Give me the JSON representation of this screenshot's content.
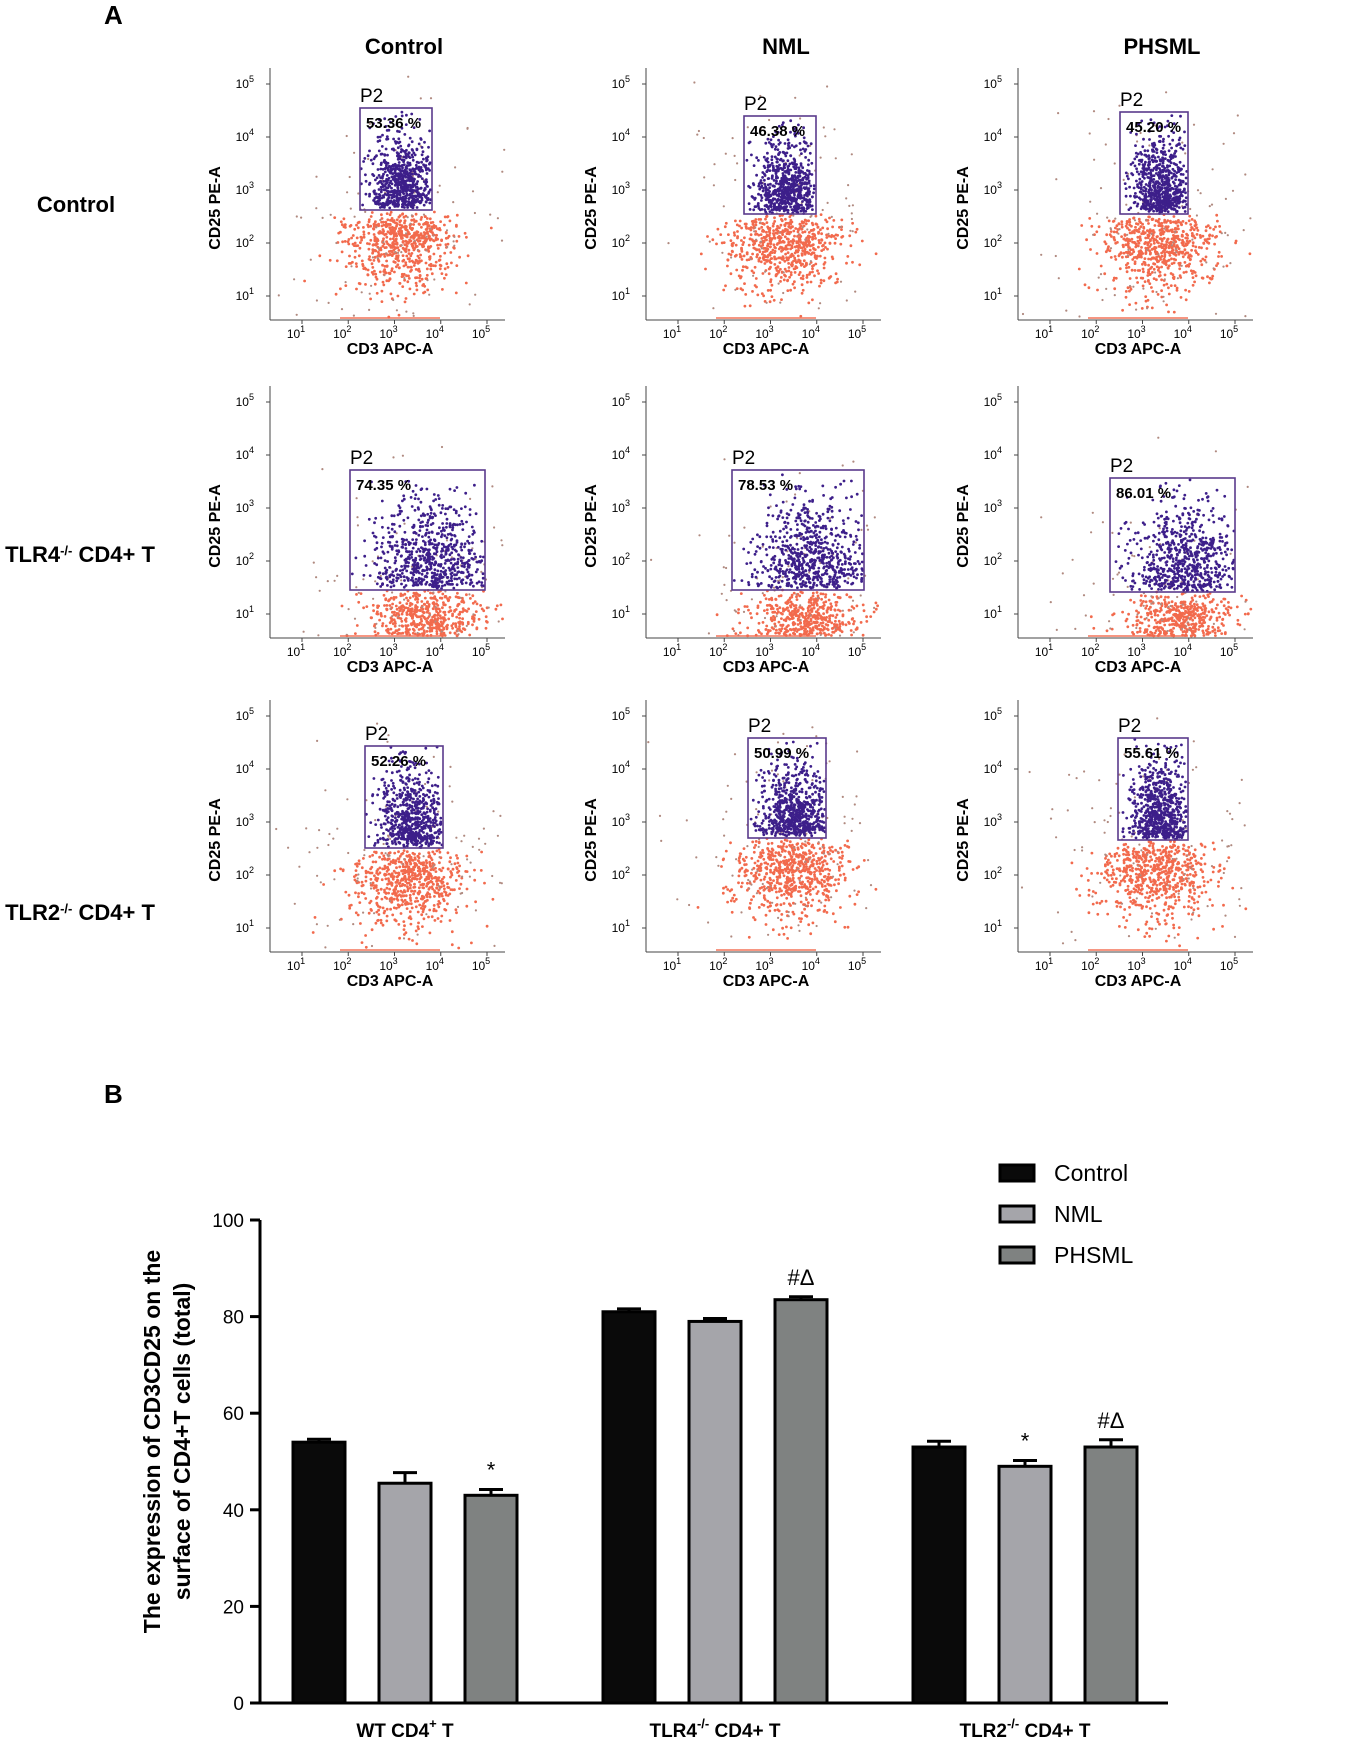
{
  "panel_a": {
    "letter": "A",
    "col_titles": [
      "Control",
      "NML",
      "PHSML"
    ],
    "row_labels": [
      {
        "name": "Control",
        "sup": "",
        "suffix": ""
      },
      {
        "name": "TLR4",
        "sup": "-/-",
        "suffix": " CD4+ T"
      },
      {
        "name": "TLR2",
        "sup": "-/-",
        "suffix": " CD4+ T"
      }
    ],
    "x_axis_label": "CD3 APC-A",
    "y_axis_label": "CD25 PE-A",
    "tick_labels": [
      "10",
      "10",
      "10",
      "10",
      "10"
    ],
    "tick_exponents": [
      "1",
      "2",
      "3",
      "4",
      "5"
    ],
    "gate_name": "P2",
    "gate_percentages": [
      [
        "53.36 %",
        "46.38 %",
        "45.20 %"
      ],
      [
        "74.35 %",
        "78.53 %",
        "86.01 %"
      ],
      [
        "52.26 %",
        "50.99 %",
        "55.61 %"
      ]
    ],
    "colors": {
      "gated": "#3d1f8a",
      "ungated": "#f26a4d",
      "gate_box": "#5a3a8c"
    }
  },
  "panel_b": {
    "letter": "B",
    "chart_data": {
      "type": "bar",
      "title": "",
      "xlabel": "",
      "ylabel_lines": [
        "The expression of CD3CD25 on the",
        "surface of CD4+T cells (total)"
      ],
      "ylim": [
        0,
        100
      ],
      "yticks": [
        "0",
        "20",
        "40",
        "60",
        "80",
        "100"
      ],
      "categories": [
        {
          "name": "WT CD4",
          "sup": "+",
          "suffix": " T"
        },
        {
          "name": "TLR4",
          "sup": "-/-",
          "suffix": " CD4+ T"
        },
        {
          "name": "TLR2",
          "sup": "-/-",
          "suffix": " CD4+ T"
        }
      ],
      "series": [
        {
          "name": "Control",
          "color": "#0a0a0a",
          "values": [
            54,
            81,
            53
          ],
          "errors": [
            0.6,
            0.6,
            1.2
          ]
        },
        {
          "name": "NML",
          "color": "#a5a5aa",
          "values": [
            45.5,
            79,
            49
          ],
          "errors": [
            2.2,
            0.6,
            1.2
          ]
        },
        {
          "name": "PHSML",
          "color": "#7f8281",
          "values": [
            43,
            83.5,
            53
          ],
          "errors": [
            1.2,
            0.6,
            1.5
          ]
        }
      ],
      "annotations": [
        {
          "category": 0,
          "series": 2,
          "text": "*"
        },
        {
          "category": 1,
          "series": 2,
          "text": "#Δ"
        },
        {
          "category": 2,
          "series": 1,
          "text": "*"
        },
        {
          "category": 2,
          "series": 2,
          "text": "#Δ"
        }
      ]
    }
  }
}
